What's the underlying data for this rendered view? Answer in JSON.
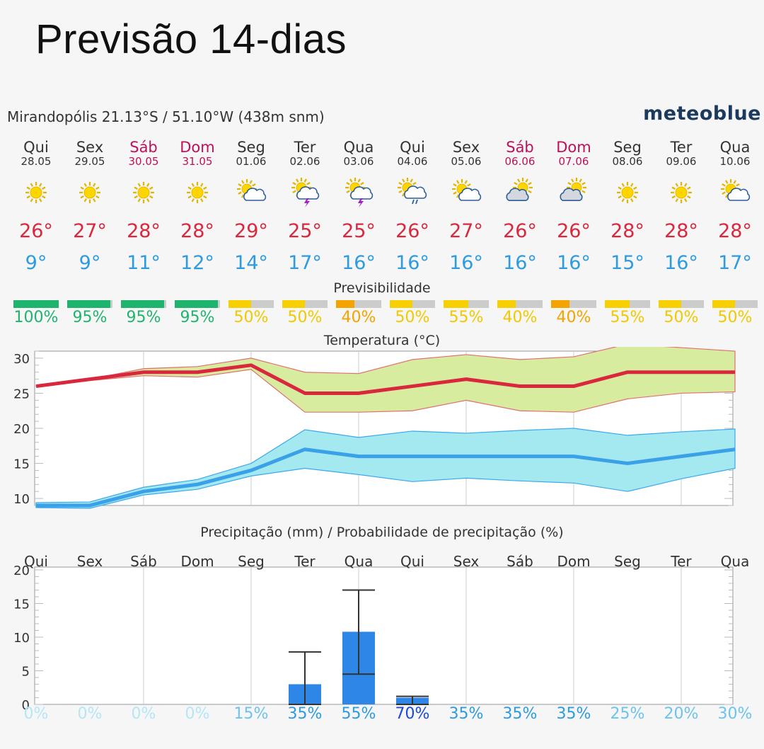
{
  "page_title": "Previsão 14-dias",
  "location": "Mirandopólis  21.13°S / 51.10°W (438m snm)",
  "logo": "meteoblue",
  "colors": {
    "max": "#d9283e",
    "min": "#2c9be0",
    "green": "#1fb46e",
    "yellow": "#f6d000",
    "orange": "#f4a400",
    "grey": "#c8c8c8",
    "rain": "#2e86e6",
    "weekend": "#c0105a"
  },
  "days": [
    {
      "name": "Qui",
      "date": "28.05",
      "weekend": false,
      "icon": "sun-icon",
      "max": "26°",
      "min": "9°",
      "predict": "100%",
      "predict_color": "green",
      "prob": "0%"
    },
    {
      "name": "Sex",
      "date": "29.05",
      "weekend": false,
      "icon": "sun-icon",
      "max": "27°",
      "min": "9°",
      "predict": "95%",
      "predict_color": "green",
      "prob": "0%"
    },
    {
      "name": "Sáb",
      "date": "30.05",
      "weekend": true,
      "icon": "sun-icon",
      "max": "28°",
      "min": "11°",
      "predict": "95%",
      "predict_color": "green",
      "prob": "0%"
    },
    {
      "name": "Dom",
      "date": "31.05",
      "weekend": true,
      "icon": "sun-icon",
      "max": "28°",
      "min": "12°",
      "predict": "95%",
      "predict_color": "green",
      "prob": "0%"
    },
    {
      "name": "Seg",
      "date": "01.06",
      "weekend": false,
      "icon": "sun-cloud-icon",
      "max": "29°",
      "min": "14°",
      "predict": "50%",
      "predict_color": "yellow",
      "prob": "15%"
    },
    {
      "name": "Ter",
      "date": "02.06",
      "weekend": false,
      "icon": "thunderstorm-icon",
      "max": "25°",
      "min": "17°",
      "predict": "50%",
      "predict_color": "yellow",
      "prob": "35%"
    },
    {
      "name": "Qua",
      "date": "03.06",
      "weekend": false,
      "icon": "thunderstorm-icon",
      "max": "25°",
      "min": "16°",
      "predict": "40%",
      "predict_color": "orange",
      "prob": "55%"
    },
    {
      "name": "Qui",
      "date": "04.06",
      "weekend": false,
      "icon": "sun-cloud-rain-icon",
      "max": "26°",
      "min": "16°",
      "predict": "50%",
      "predict_color": "yellow",
      "prob": "70%"
    },
    {
      "name": "Sex",
      "date": "05.06",
      "weekend": false,
      "icon": "sun-cloud-icon",
      "max": "27°",
      "min": "16°",
      "predict": "55%",
      "predict_color": "yellow",
      "prob": "35%"
    },
    {
      "name": "Sáb",
      "date": "06.06",
      "weekend": true,
      "icon": "cloud-sun-icon",
      "max": "26°",
      "min": "16°",
      "predict": "40%",
      "predict_color": "yellow",
      "prob": "35%"
    },
    {
      "name": "Dom",
      "date": "07.06",
      "weekend": true,
      "icon": "cloud-sun-icon",
      "max": "26°",
      "min": "16°",
      "predict": "40%",
      "predict_color": "orange",
      "prob": "35%"
    },
    {
      "name": "Seg",
      "date": "08.06",
      "weekend": false,
      "icon": "sun-icon",
      "max": "28°",
      "min": "15°",
      "predict": "55%",
      "predict_color": "yellow",
      "prob": "25%"
    },
    {
      "name": "Ter",
      "date": "09.06",
      "weekend": false,
      "icon": "sun-icon",
      "max": "28°",
      "min": "16°",
      "predict": "50%",
      "predict_color": "yellow",
      "prob": "20%"
    },
    {
      "name": "Qua",
      "date": "10.06",
      "weekend": false,
      "icon": "sun-cloud-icon",
      "max": "28°",
      "min": "17°",
      "predict": "50%",
      "predict_color": "yellow",
      "prob": "30%"
    }
  ],
  "predictability_title": "Previsibilidade",
  "temperature_title": "Temperatura (°C)",
  "precip_title": "Precipitação (mm) / Probabilidade de precipitação (%)",
  "chart_data": [
    {
      "type": "line",
      "title": "Temperatura (°C)",
      "categories": [
        "28.05",
        "29.05",
        "30.05",
        "31.05",
        "01.06",
        "02.06",
        "03.06",
        "04.06",
        "05.06",
        "06.06",
        "07.06",
        "08.06",
        "09.06",
        "10.06"
      ],
      "yticks": [
        10,
        15,
        20,
        25,
        30
      ],
      "ylim": [
        9,
        31
      ],
      "series": [
        {
          "key": "max",
          "values": [
            26,
            27,
            28,
            28,
            29,
            25,
            25,
            26,
            27,
            26,
            26,
            28,
            28,
            28
          ],
          "upper": [
            26,
            27,
            28.5,
            28.8,
            30,
            28,
            27.8,
            29.8,
            30.5,
            29.8,
            30.2,
            32,
            31.5,
            31
          ],
          "lower": [
            26,
            26.8,
            27.5,
            27.3,
            28.4,
            22.3,
            22.3,
            22.5,
            24,
            22.5,
            22.3,
            24.2,
            25,
            25.2
          ]
        },
        {
          "key": "min",
          "values": [
            9,
            9,
            11,
            12,
            14,
            17,
            16,
            16,
            16,
            16,
            16,
            15,
            16,
            17
          ],
          "upper": [
            9.4,
            9.5,
            11.6,
            12.7,
            15,
            19.8,
            18.7,
            19.6,
            19.3,
            19.7,
            20,
            19,
            19.5,
            19.9
          ],
          "lower": [
            8.7,
            8.6,
            10.5,
            11.3,
            13.2,
            14.3,
            13.4,
            12.4,
            12.9,
            12.5,
            12.2,
            11,
            12.8,
            14.3
          ]
        }
      ]
    },
    {
      "type": "bar",
      "title": "Precipitação (mm) / Probabilidade de precipitação (%)",
      "categories": [
        "Qui",
        "Sex",
        "Sáb",
        "Dom",
        "Seg",
        "Ter",
        "Qua",
        "Qui",
        "Sex",
        "Sáb",
        "Dom",
        "Seg",
        "Ter",
        "Qua"
      ],
      "values": [
        0,
        0,
        0,
        0,
        0,
        3,
        10.8,
        1,
        0,
        0,
        0,
        0,
        0,
        0
      ],
      "error_low": [
        0,
        0,
        0,
        0,
        0,
        0,
        4.5,
        0,
        0,
        0,
        0,
        0,
        0,
        0
      ],
      "error_high": [
        0,
        0,
        0,
        0,
        0,
        7.8,
        17,
        1.2,
        0,
        0,
        0,
        0,
        0,
        0
      ],
      "ylim": [
        0,
        20
      ],
      "yticks": [
        0,
        5,
        10,
        15,
        20
      ],
      "probabilities": [
        "0%",
        "0%",
        "0%",
        "0%",
        "15%",
        "35%",
        "55%",
        "70%",
        "35%",
        "35%",
        "35%",
        "25%",
        "20%",
        "30%"
      ]
    }
  ]
}
